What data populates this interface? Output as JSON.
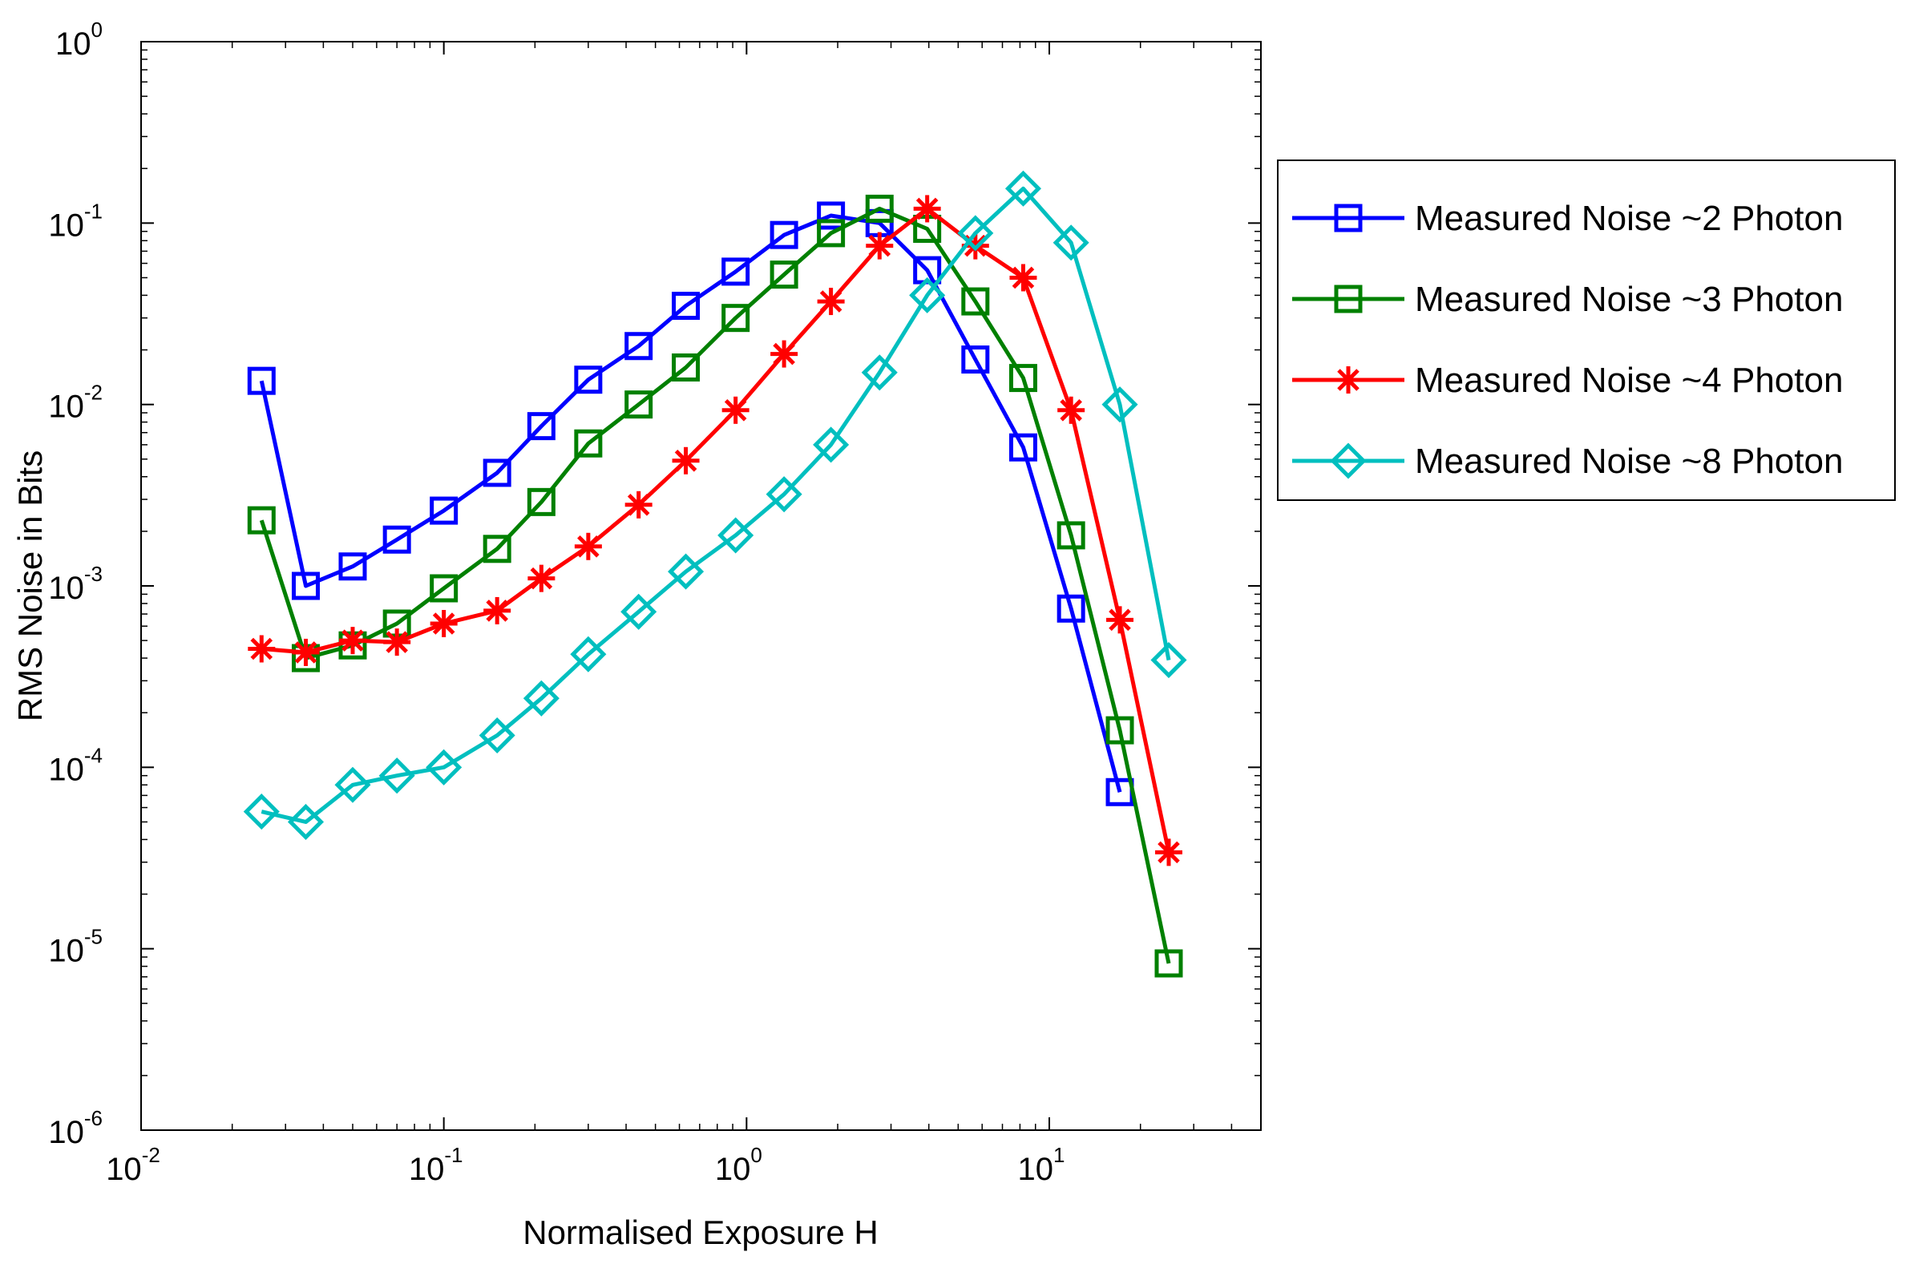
{
  "chart_data": {
    "type": "line",
    "xlabel": "Normalised Exposure H",
    "ylabel": "RMS Noise in Bits",
    "xscale": "log",
    "yscale": "log",
    "xlim": [
      0.01,
      50
    ],
    "ylim": [
      1e-06,
      1
    ],
    "grid": false,
    "legend_position": "outside-right",
    "x_ticks": [
      {
        "base": "10",
        "exp": "-2",
        "value": 0.01
      },
      {
        "base": "10",
        "exp": "-1",
        "value": 0.1
      },
      {
        "base": "10",
        "exp": "0",
        "value": 1
      },
      {
        "base": "10",
        "exp": "1",
        "value": 10
      }
    ],
    "y_ticks": [
      {
        "base": "10",
        "exp": "-6",
        "value": 1e-06
      },
      {
        "base": "10",
        "exp": "-5",
        "value": 1e-05
      },
      {
        "base": "10",
        "exp": "-4",
        "value": 0.0001
      },
      {
        "base": "10",
        "exp": "-3",
        "value": 0.001
      },
      {
        "base": "10",
        "exp": "-2",
        "value": 0.01
      },
      {
        "base": "10",
        "exp": "-1",
        "value": 0.1
      },
      {
        "base": "10",
        "exp": "0",
        "value": 1
      }
    ],
    "series": [
      {
        "name": "Measured Noise ~2 Photon",
        "color": "#0000ff",
        "marker": "square",
        "x": [
          0.025,
          0.035,
          0.05,
          0.07,
          0.1,
          0.15,
          0.21,
          0.3,
          0.44,
          0.63,
          0.92,
          1.33,
          1.9,
          2.75,
          3.95,
          5.7,
          8.2,
          11.8,
          17.1
        ],
        "y": [
          0.0135,
          0.001,
          0.00128,
          0.0018,
          0.0026,
          0.0042,
          0.0076,
          0.0137,
          0.021,
          0.035,
          0.054,
          0.086,
          0.11,
          0.1,
          0.055,
          0.0177,
          0.0058,
          0.00075,
          7.3e-05
        ]
      },
      {
        "name": "Measured Noise ~3 Photon",
        "color": "#008000",
        "marker": "square",
        "x": [
          0.025,
          0.035,
          0.05,
          0.07,
          0.1,
          0.15,
          0.21,
          0.3,
          0.44,
          0.63,
          0.92,
          1.33,
          1.9,
          2.75,
          3.95,
          5.7,
          8.2,
          11.8,
          17.1,
          24.8
        ],
        "y": [
          0.0023,
          0.0004,
          0.00047,
          0.00062,
          0.00097,
          0.0016,
          0.0029,
          0.0061,
          0.01,
          0.016,
          0.03,
          0.052,
          0.088,
          0.12,
          0.093,
          0.037,
          0.014,
          0.0019,
          0.00016,
          8.3e-06
        ]
      },
      {
        "name": "Measured Noise ~4 Photon",
        "color": "#ff0000",
        "marker": "asterisk",
        "x": [
          0.025,
          0.035,
          0.05,
          0.07,
          0.1,
          0.15,
          0.21,
          0.3,
          0.44,
          0.63,
          0.92,
          1.33,
          1.9,
          2.75,
          3.95,
          5.7,
          8.2,
          11.8,
          17.1,
          24.8
        ],
        "y": [
          0.00045,
          0.00043,
          0.0005,
          0.00049,
          0.00062,
          0.00073,
          0.0011,
          0.00165,
          0.0028,
          0.0049,
          0.0093,
          0.019,
          0.037,
          0.075,
          0.12,
          0.075,
          0.05,
          0.0093,
          0.00065,
          3.4e-05
        ]
      },
      {
        "name": "Measured Noise ~8 Photon",
        "color": "#00bfbf",
        "marker": "diamond",
        "x": [
          0.025,
          0.035,
          0.05,
          0.07,
          0.1,
          0.15,
          0.21,
          0.3,
          0.44,
          0.63,
          0.92,
          1.33,
          1.9,
          2.75,
          3.95,
          5.7,
          8.2,
          11.8,
          17.1,
          24.8
        ],
        "y": [
          5.7e-05,
          5e-05,
          8e-05,
          9e-05,
          0.0001,
          0.00015,
          0.00024,
          0.00042,
          0.00072,
          0.0012,
          0.0019,
          0.0032,
          0.006,
          0.015,
          0.04,
          0.088,
          0.155,
          0.078,
          0.01,
          0.00039
        ]
      }
    ]
  }
}
